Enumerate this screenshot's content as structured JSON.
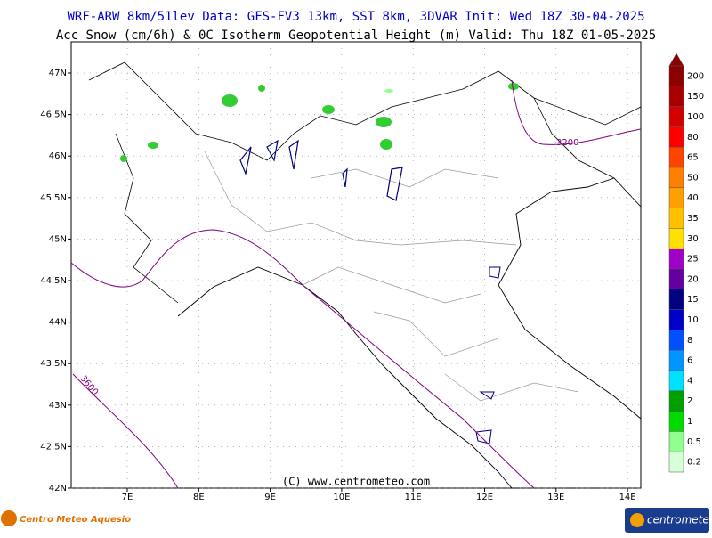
{
  "header": {
    "line1": "WRF-ARW 8km/51lev  Data: GFS-FV3 13km, SST 8km, 3DVAR  Init: Wed 18Z 30-04-2025",
    "line2": "Acc Snow (cm/6h) & 0C Isotherm Geopotential Height (m)  Valid: Thu 18Z 01-05-2025"
  },
  "map": {
    "lat_labels": [
      {
        "value": 47,
        "label": "47N"
      },
      {
        "value": 46.5,
        "label": "46.5N"
      },
      {
        "value": 46,
        "label": "46N"
      },
      {
        "value": 45.5,
        "label": "45.5N"
      },
      {
        "value": 45,
        "label": "45N"
      },
      {
        "value": 44.5,
        "label": "44.5N"
      },
      {
        "value": 44,
        "label": "44N"
      },
      {
        "value": 43.5,
        "label": "43.5N"
      },
      {
        "value": 43,
        "label": "43N"
      },
      {
        "value": 42.5,
        "label": "42.5N"
      },
      {
        "value": 42,
        "label": "42N"
      }
    ],
    "lon_labels": [
      {
        "value": 7,
        "label": "7E"
      },
      {
        "value": 8,
        "label": "8E"
      },
      {
        "value": 9,
        "label": "9E"
      },
      {
        "value": 10,
        "label": "10E"
      },
      {
        "value": 11,
        "label": "11E"
      },
      {
        "value": 12,
        "label": "12E"
      },
      {
        "value": 13,
        "label": "13E"
      },
      {
        "value": 14,
        "label": "14E"
      }
    ],
    "contour_labels": [
      "3200",
      "3600"
    ],
    "copyright": "(C) www.centrometeo.com"
  },
  "colorbar": [
    {
      "label": "200",
      "color": "#8b0000"
    },
    {
      "label": "150",
      "color": "#a80000"
    },
    {
      "label": "100",
      "color": "#d40000"
    },
    {
      "label": "80",
      "color": "#ff0000"
    },
    {
      "label": "65",
      "color": "#ff4400"
    },
    {
      "label": "50",
      "color": "#ff8000"
    },
    {
      "label": "40",
      "color": "#ffa000"
    },
    {
      "label": "35",
      "color": "#ffc000"
    },
    {
      "label": "30",
      "color": "#ffe000"
    },
    {
      "label": "25",
      "color": "#a000c8"
    },
    {
      "label": "20",
      "color": "#6400a0"
    },
    {
      "label": "15",
      "color": "#000080"
    },
    {
      "label": "10",
      "color": "#0000c8"
    },
    {
      "label": "8",
      "color": "#0050ff"
    },
    {
      "label": "6",
      "color": "#0096ff"
    },
    {
      "label": "4",
      "color": "#00e0ff"
    },
    {
      "label": "2",
      "color": "#00a000"
    },
    {
      "label": "1",
      "color": "#00dc00"
    },
    {
      "label": "0.5",
      "color": "#90ff90"
    },
    {
      "label": "0.2",
      "color": "#d8ffd8"
    }
  ],
  "footer": {
    "left_logo": "Centro Meteo Aquesio",
    "right_logo": "centrometeo"
  }
}
